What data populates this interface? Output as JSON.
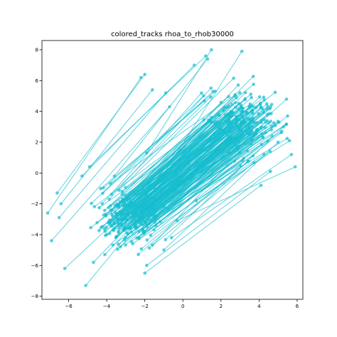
{
  "chart_data": {
    "type": "line",
    "title": "colored_tracks rhoa_to_rhob30000",
    "xlabel": "",
    "ylabel": "",
    "xlim": [
      -7.4,
      6.3
    ],
    "ylim": [
      -8.2,
      8.6
    ],
    "x_ticks": [
      -6,
      -4,
      -2,
      0,
      2,
      4,
      6
    ],
    "y_ticks": [
      -8,
      -6,
      -4,
      -2,
      0,
      2,
      4,
      6,
      8
    ],
    "x_tick_labels": [
      "−6",
      "−4",
      "−2",
      "0",
      "2",
      "4",
      "6"
    ],
    "y_tick_labels": [
      "−8",
      "−6",
      "−4",
      "−2",
      "0",
      "2",
      "4",
      "6",
      "8"
    ],
    "grid": false,
    "legend": "none",
    "series_color": "#17becf",
    "track_count": 260,
    "highlighted_tracks": [
      {
        "x": [
          -7.1,
          -2.2
        ],
        "y": [
          -2.6,
          6.2
        ]
      },
      {
        "x": [
          -6.6,
          -2.0
        ],
        "y": [
          -1.3,
          6.4
        ]
      },
      {
        "x": [
          -6.4,
          -1.6
        ],
        "y": [
          -2.0,
          5.4
        ]
      },
      {
        "x": [
          -6.5,
          -0.9
        ],
        "y": [
          -2.9,
          5.2
        ]
      },
      {
        "x": [
          -6.9,
          -0.7
        ],
        "y": [
          -4.4,
          4.3
        ]
      },
      {
        "x": [
          -5.1,
          -0.1
        ],
        "y": [
          -7.3,
          0.2
        ]
      },
      {
        "x": [
          -6.2,
          0.1
        ],
        "y": [
          -6.2,
          1.1
        ]
      },
      {
        "x": [
          -5.3,
          0.6
        ],
        "y": [
          -0.2,
          7.0
        ]
      },
      {
        "x": [
          -4.9,
          1.2
        ],
        "y": [
          0.4,
          7.6
        ]
      },
      {
        "x": [
          -3.6,
          1.3
        ],
        "y": [
          -0.2,
          7.4
        ]
      },
      {
        "x": [
          -4.7,
          0.3
        ],
        "y": [
          -5.8,
          0.6
        ]
      },
      {
        "x": [
          -4.1,
          1.2
        ],
        "y": [
          -5.3,
          1.5
        ]
      },
      {
        "x": [
          -1.9,
          1.5
        ],
        "y": [
          1.3,
          8.0
        ]
      },
      {
        "x": [
          -1.5,
          3.1
        ],
        "y": [
          -1.0,
          7.9
        ]
      },
      {
        "x": [
          -2.0,
          4.1
        ],
        "y": [
          -6.5,
          -0.8
        ]
      },
      {
        "x": [
          -1.9,
          4.6
        ],
        "y": [
          -6.0,
          0.1
        ]
      },
      {
        "x": [
          -1.0,
          5.0
        ],
        "y": [
          -5.0,
          2.0
        ]
      },
      {
        "x": [
          -0.6,
          5.7
        ],
        "y": [
          -4.2,
          1.2
        ]
      },
      {
        "x": [
          -0.3,
          5.9
        ],
        "y": [
          -3.1,
          0.4
        ]
      },
      {
        "x": [
          0.7,
          5.6
        ],
        "y": [
          -1.8,
          2.1
        ]
      },
      {
        "x": [
          -3.2,
          3.6
        ],
        "y": [
          -2.5,
          4.9
        ]
      },
      {
        "x": [
          -2.5,
          4.1
        ],
        "y": [
          -3.1,
          4.3
        ]
      }
    ]
  }
}
